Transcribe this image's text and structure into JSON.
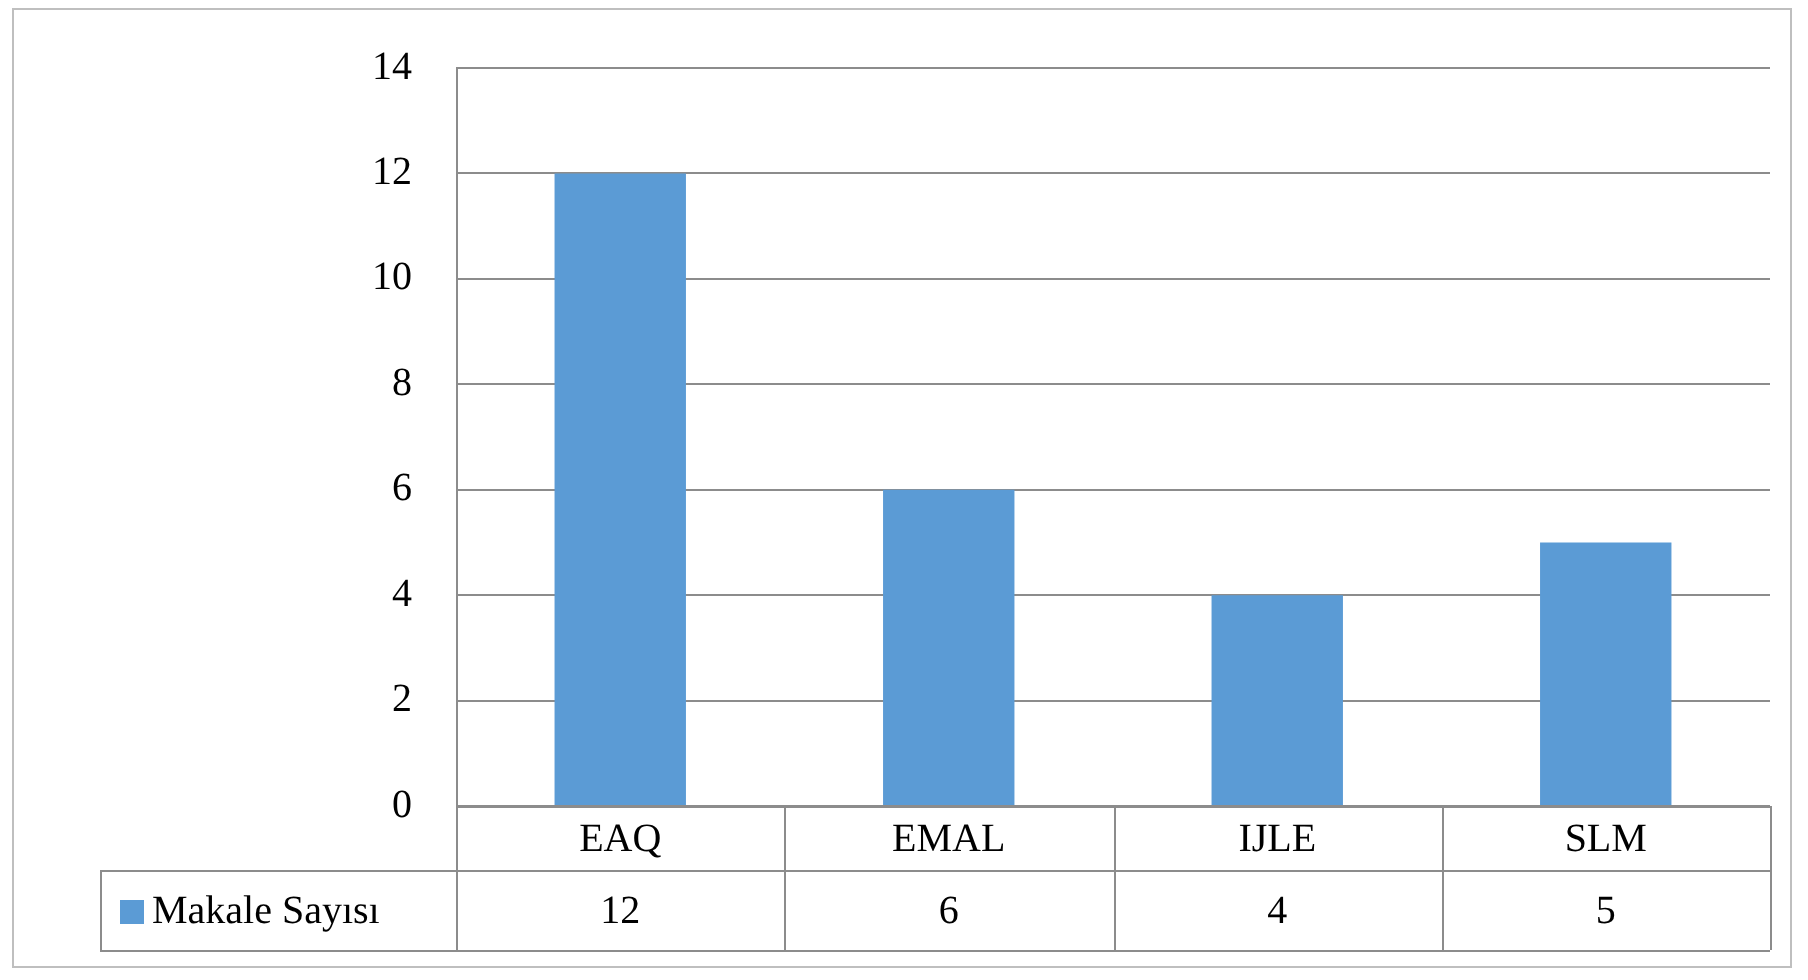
{
  "chart_data": {
    "type": "bar",
    "categories": [
      "EAQ",
      "EMAL",
      "IJLE",
      "SLM"
    ],
    "series": [
      {
        "name": "Makale Sayısı",
        "color": "#5b9bd5",
        "values": [
          12,
          6,
          4,
          5
        ]
      }
    ],
    "ylim": [
      0,
      14
    ],
    "yticks": [
      0,
      2,
      4,
      6,
      8,
      10,
      12,
      14
    ],
    "grid": "y",
    "legend": "bottom",
    "data_labels": true
  }
}
